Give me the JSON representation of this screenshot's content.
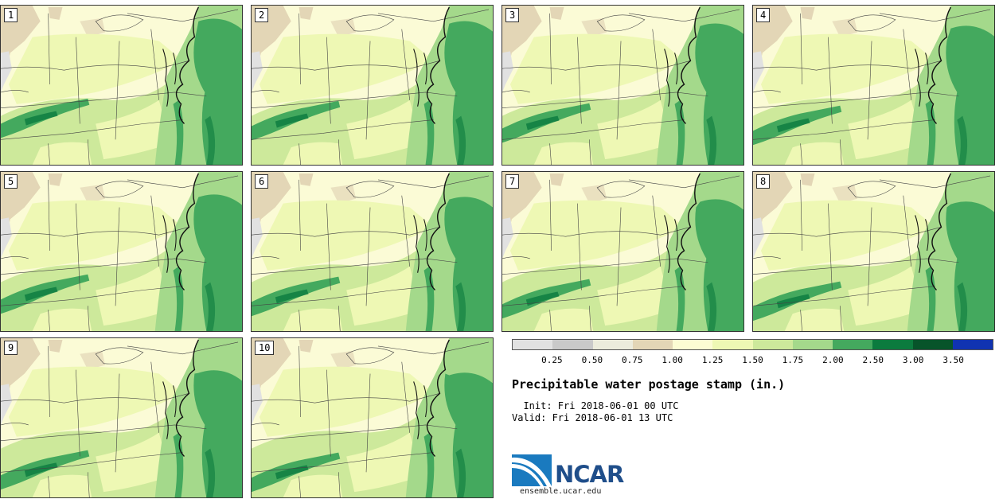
{
  "panels": [
    {
      "label": "1"
    },
    {
      "label": "2"
    },
    {
      "label": "3"
    },
    {
      "label": "4"
    },
    {
      "label": "5"
    },
    {
      "label": "6"
    },
    {
      "label": "7"
    },
    {
      "label": "8"
    },
    {
      "label": "9"
    },
    {
      "label": "10"
    }
  ],
  "legend": {
    "colors": [
      "#e1e1e1",
      "#c9c9c9",
      "#ececdc",
      "#e3d6b6",
      "#fcfcd3",
      "#eef8b4",
      "#cde99b",
      "#a4d98b",
      "#44a95e",
      "#0b7b3e",
      "#07542a",
      "#1033b1"
    ],
    "ticks": [
      "0.25",
      "0.50",
      "0.75",
      "1.00",
      "1.25",
      "1.50",
      "1.75",
      "2.00",
      "2.50",
      "3.00",
      "3.50"
    ]
  },
  "title": "Precipitable water postage stamp (in.)",
  "init_text": "  Init: Fri 2018-06-01 00 UTC",
  "valid_text": "Valid: Fri 2018-06-01 13 UTC",
  "logo": {
    "name": "NCAR",
    "url": "ensemble.ucar.edu"
  }
}
